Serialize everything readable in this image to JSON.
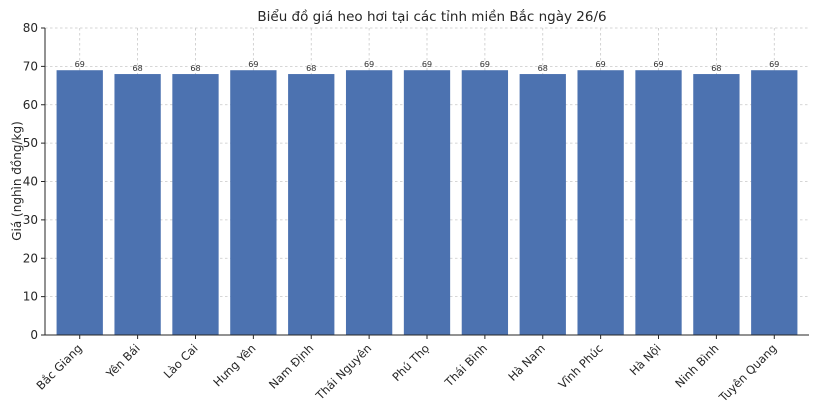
{
  "chart_data": {
    "type": "bar",
    "title": "Biểu đồ giá heo hơi tại các tỉnh miền Bắc ngày 26/6",
    "xlabel": "",
    "ylabel": "Giá (nghìn đồng/kg)",
    "ylim": [
      0,
      80
    ],
    "yticks": [
      "0",
      "10",
      "20",
      "30",
      "40",
      "50",
      "60",
      "70",
      "80"
    ],
    "grid": true,
    "categories": [
      "Bắc Giang",
      "Yên Bái",
      "Lào Cai",
      "Hưng Yên",
      "Nam Định",
      "Thái Nguyên",
      "Phú Thọ",
      "Thái Bình",
      "Hà Nam",
      "Vĩnh Phúc",
      "Hà Nội",
      "Ninh Bình",
      "Tuyên Quang"
    ],
    "values": [
      69,
      68,
      68,
      69,
      68,
      69,
      69,
      69,
      68,
      69,
      69,
      68,
      69
    ],
    "bar_color": "#4c72b0"
  }
}
